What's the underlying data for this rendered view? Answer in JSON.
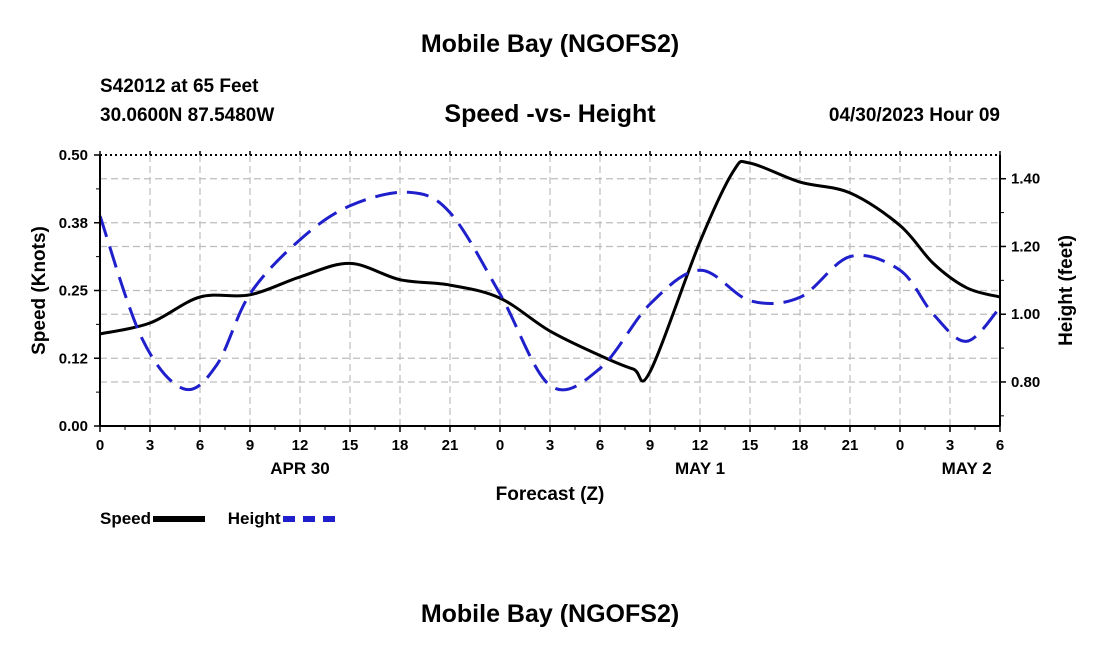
{
  "header": {
    "title": "Mobile Bay (NGOFS2)",
    "station": "S42012 at 65 Feet",
    "coords": "30.0600N  87.5480W",
    "subtitle": "Speed -vs- Height",
    "time": "04/30/2023 Hour 09"
  },
  "footer": {
    "title": "Mobile Bay (NGOFS2)"
  },
  "legend": {
    "speed_label": "Speed",
    "height_label": "Height"
  },
  "chart_data": {
    "type": "line",
    "title": "Speed -vs- Height",
    "xlabel": "Forecast (Z)",
    "ylabel_left": "Speed (Knots)",
    "ylabel_right": "Height (feet)",
    "x_ticks": [
      "0",
      "3",
      "6",
      "9",
      "12",
      "15",
      "18",
      "21",
      "0",
      "3",
      "6",
      "9",
      "12",
      "15",
      "18",
      "21",
      "0",
      "3",
      "6"
    ],
    "date_labels": [
      {
        "label": "APR 30",
        "x": 12
      },
      {
        "label": "MAY 1",
        "x": 36
      },
      {
        "label": "MAY 2",
        "x": 52
      }
    ],
    "xlim": [
      0,
      54
    ],
    "ylim_left": [
      0,
      0.5
    ],
    "yticks_left": [
      "0.00",
      "0.12",
      "0.25",
      "0.38",
      "0.50"
    ],
    "ylim_right": [
      0.67,
      1.47
    ],
    "yticks_right": [
      "0.80",
      "1.00",
      "1.20",
      "1.40"
    ],
    "grid": true,
    "series": [
      {
        "name": "Speed",
        "color": "#000000",
        "dash": "solid",
        "axis": "left",
        "x": [
          0,
          3,
          6,
          9,
          12,
          15,
          18,
          21,
          24,
          27,
          30,
          32,
          33,
          36,
          38,
          39,
          42,
          45,
          48,
          50,
          52,
          54
        ],
        "values": [
          0.17,
          0.19,
          0.238,
          0.242,
          0.275,
          0.3,
          0.27,
          0.26,
          0.236,
          0.175,
          0.13,
          0.105,
          0.1,
          0.34,
          0.47,
          0.485,
          0.45,
          0.43,
          0.37,
          0.3,
          0.255,
          0.238
        ]
      },
      {
        "name": "Height",
        "color": "#1f1fcc",
        "dash": "dashed",
        "axis": "right",
        "x": [
          0,
          2.5,
          5,
          7,
          9,
          12,
          15,
          18.5,
          21,
          24,
          27,
          30,
          33,
          36,
          39,
          42,
          45,
          48,
          50,
          52,
          54
        ],
        "values": [
          1.29,
          0.93,
          0.78,
          0.85,
          1.06,
          1.22,
          1.32,
          1.36,
          1.3,
          1.06,
          0.79,
          0.84,
          1.03,
          1.13,
          1.04,
          1.05,
          1.17,
          1.13,
          1.0,
          0.92,
          1.02
        ]
      }
    ]
  }
}
